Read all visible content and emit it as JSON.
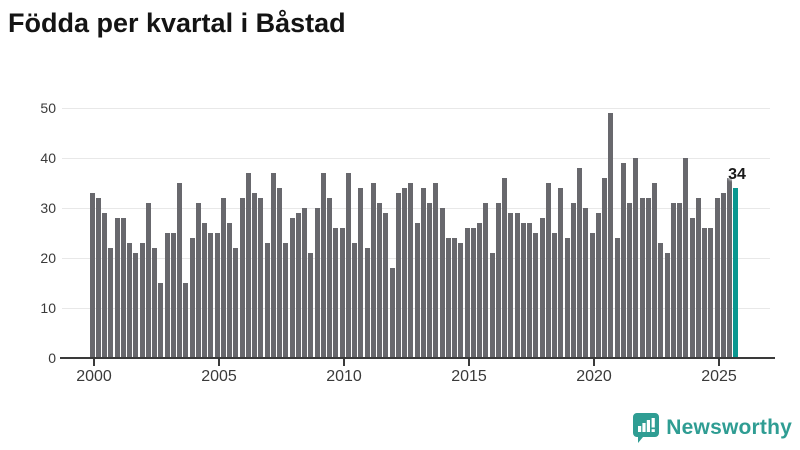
{
  "title": "Födda per kvartal i Båstad",
  "annotation": {
    "label": "34"
  },
  "logo": {
    "text": "Newsworthy",
    "icon": "speech-bubble-bar-chart"
  },
  "colors": {
    "bar": "#68686d",
    "highlight": "#0a9790",
    "grid": "#e8e8e8",
    "axis": "#3a3a3a",
    "tick_label": "#3a3a3a",
    "title": "#141414",
    "logo": "#2f9d93"
  },
  "chart_data": {
    "type": "bar",
    "title": "Födda per kvartal i Båstad",
    "frequency": "quarterly",
    "x_start": "2000Q1",
    "x_end": "2025Q4",
    "values": [
      33,
      32,
      29,
      22,
      28,
      28,
      23,
      21,
      23,
      31,
      22,
      15,
      25,
      25,
      35,
      15,
      24,
      31,
      27,
      25,
      25,
      32,
      27,
      22,
      32,
      37,
      33,
      32,
      23,
      37,
      34,
      23,
      28,
      29,
      30,
      21,
      30,
      37,
      32,
      26,
      26,
      37,
      23,
      34,
      22,
      35,
      31,
      29,
      18,
      33,
      34,
      35,
      27,
      34,
      31,
      35,
      30,
      24,
      24,
      23,
      26,
      26,
      27,
      31,
      21,
      31,
      36,
      29,
      29,
      27,
      27,
      25,
      28,
      35,
      25,
      34,
      24,
      31,
      38,
      30,
      25,
      29,
      36,
      49,
      24,
      39,
      31,
      40,
      32,
      32,
      35,
      23,
      21,
      31,
      31,
      40,
      28,
      32,
      26,
      26,
      32,
      33,
      36,
      34
    ],
    "highlight_last": true,
    "highlight_value": 34,
    "x_tick_years": [
      2000,
      2005,
      2010,
      2015,
      2020,
      2025
    ],
    "x_tick_labels": [
      "2000",
      "2005",
      "2010",
      "2015",
      "2020",
      "2025"
    ],
    "y_ticks": [
      0,
      10,
      20,
      30,
      40,
      50
    ],
    "ylim": [
      0,
      50
    ],
    "grid": "horizontal",
    "legend": "none"
  }
}
